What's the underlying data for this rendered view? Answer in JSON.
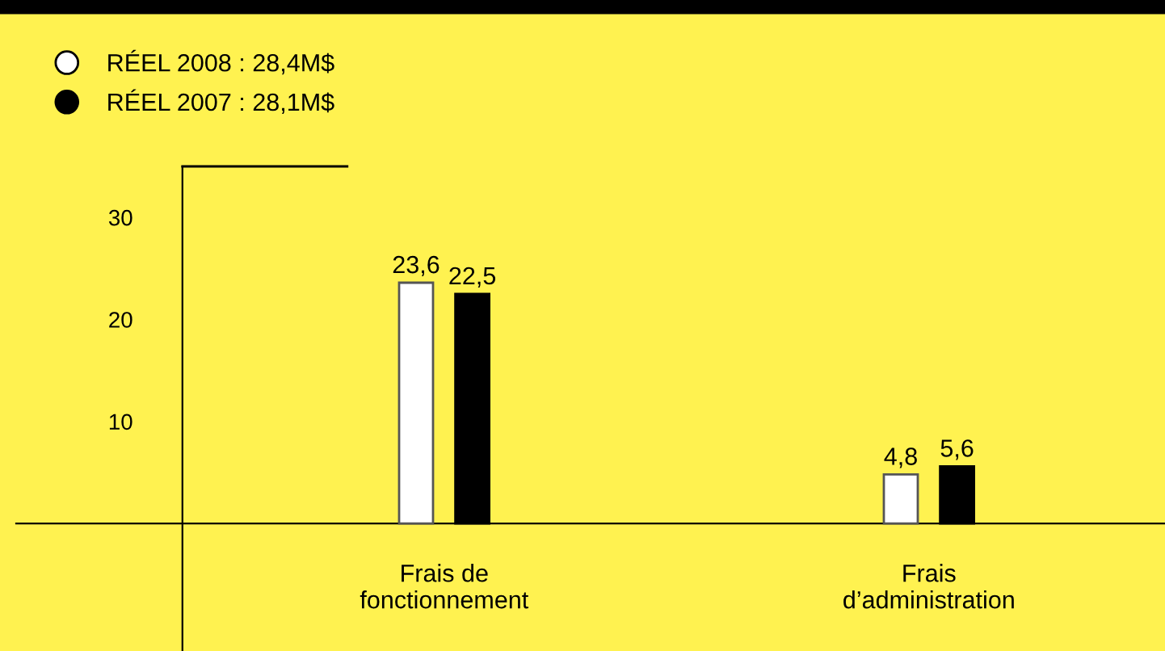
{
  "chart_data": {
    "type": "bar",
    "categories": [
      "Frais de\nfonctionnement",
      "Frais\nd’administration"
    ],
    "series": [
      {
        "name": "RÉEL 2008 : 28,4M$",
        "color": "#ffffff",
        "values": [
          23.6,
          4.8
        ],
        "value_labels": [
          "23,6",
          "4,8"
        ]
      },
      {
        "name": "RÉEL 2007 : 28,1M$",
        "color": "#000000",
        "values": [
          22.5,
          5.6
        ],
        "value_labels": [
          "22,5",
          "5,6"
        ]
      }
    ],
    "ylim": [
      -12.5,
      35
    ],
    "yticks": [
      10,
      20,
      30
    ],
    "grid": false,
    "legend": "top left"
  }
}
